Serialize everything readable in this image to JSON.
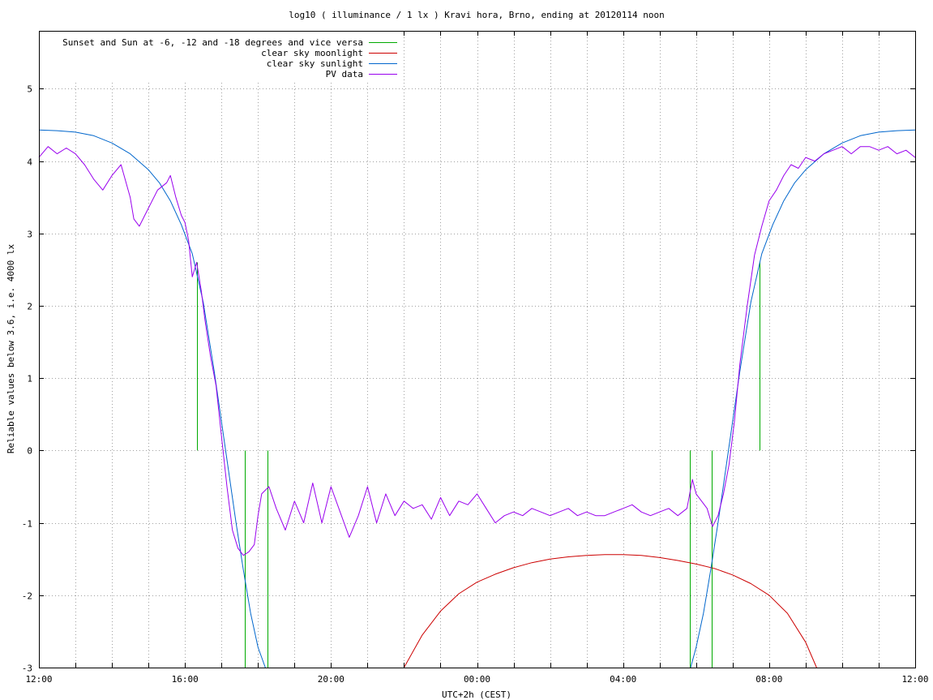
{
  "chart_data": {
    "type": "line",
    "title": "log10 ( illuminance / 1 lx ) Kravi hora, Brno, ending at 20120114 noon",
    "xlabel": "UTC+2h (CEST)",
    "ylabel": "Reliable values below 3.6, i.e. 4000 lx",
    "x_unit": "hours",
    "xlim": [
      0,
      24
    ],
    "ylim": [
      -3,
      5.8
    ],
    "x_tick_labels": [
      {
        "x": 0,
        "label": "12:00"
      },
      {
        "x": 4,
        "label": "16:00"
      },
      {
        "x": 8,
        "label": "20:00"
      },
      {
        "x": 12,
        "label": "00:00"
      },
      {
        "x": 16,
        "label": "04:00"
      },
      {
        "x": 20,
        "label": "08:00"
      },
      {
        "x": 24,
        "label": "12:00"
      }
    ],
    "x_minor_ticks": [
      1,
      2,
      3,
      5,
      6,
      7,
      9,
      10,
      11,
      13,
      14,
      15,
      17,
      18,
      19,
      21,
      22,
      23
    ],
    "y_ticks": [
      -3,
      -2,
      -1,
      0,
      1,
      2,
      3,
      4,
      5
    ],
    "grid": true,
    "legend_position": "top-left",
    "series": [
      {
        "name": "Sunset and Sun at -6, -12 and -18 degrees and vice versa",
        "color": "#00aa00",
        "style": "impulses",
        "impulses": [
          {
            "x": 4.32,
            "y": 2.6
          },
          {
            "x": 5.0,
            "y": 0.0
          },
          {
            "x": 5.63,
            "y": -3.0
          },
          {
            "x": 6.25,
            "y": -3.0
          },
          {
            "x": 17.82,
            "y": -3.0
          },
          {
            "x": 18.43,
            "y": -3.0
          },
          {
            "x": 19.05,
            "y": 0.0
          },
          {
            "x": 19.73,
            "y": 2.6
          }
        ]
      },
      {
        "name": "clear sky moonlight",
        "color": "#cc0000",
        "style": "line",
        "x": [
          10.0,
          10.5,
          11.0,
          11.5,
          12.0,
          12.5,
          13.0,
          13.5,
          14.0,
          14.5,
          15.0,
          15.5,
          16.0,
          16.5,
          17.0,
          17.5,
          18.0,
          18.5,
          19.0,
          19.5,
          20.0,
          20.5,
          21.0,
          21.3
        ],
        "values": [
          -3.0,
          -2.55,
          -2.22,
          -1.98,
          -1.82,
          -1.71,
          -1.62,
          -1.55,
          -1.5,
          -1.47,
          -1.45,
          -1.44,
          -1.44,
          -1.45,
          -1.48,
          -1.52,
          -1.57,
          -1.63,
          -1.72,
          -1.84,
          -2.0,
          -2.25,
          -2.65,
          -3.0
        ]
      },
      {
        "name": "clear sky sunlight",
        "color": "#0066cc",
        "style": "line",
        "x": [
          0.0,
          0.5,
          1.0,
          1.5,
          2.0,
          2.5,
          3.0,
          3.3,
          3.6,
          3.9,
          4.2,
          4.5,
          4.8,
          5.0,
          5.2,
          5.4,
          5.6,
          5.8,
          6.0,
          6.2,
          17.85,
          18.0,
          18.2,
          18.4,
          18.6,
          18.8,
          19.0,
          19.2,
          19.5,
          19.8,
          20.1,
          20.4,
          20.7,
          21.0,
          21.5,
          22.0,
          22.5,
          23.0,
          23.5,
          24.0
        ],
        "values": [
          4.43,
          4.42,
          4.4,
          4.35,
          4.25,
          4.1,
          3.88,
          3.7,
          3.45,
          3.12,
          2.72,
          2.05,
          1.1,
          0.4,
          -0.3,
          -1.0,
          -1.65,
          -2.25,
          -2.72,
          -3.0,
          -3.0,
          -2.72,
          -2.25,
          -1.65,
          -1.0,
          -0.3,
          0.4,
          1.1,
          2.05,
          2.72,
          3.12,
          3.45,
          3.7,
          3.88,
          4.1,
          4.25,
          4.35,
          4.4,
          4.42,
          4.43
        ]
      },
      {
        "name": "PV data",
        "color": "#9900ee",
        "style": "line",
        "x": [
          0.0,
          0.25,
          0.5,
          0.75,
          1.0,
          1.25,
          1.5,
          1.75,
          2.0,
          2.25,
          2.5,
          2.6,
          2.75,
          3.0,
          3.25,
          3.5,
          3.6,
          3.75,
          3.9,
          4.0,
          4.1,
          4.2,
          4.32,
          4.45,
          4.55,
          4.7,
          4.85,
          5.0,
          5.15,
          5.3,
          5.45,
          5.6,
          5.75,
          5.9,
          6.0,
          6.1,
          6.2,
          6.3,
          6.5,
          6.75,
          7.0,
          7.25,
          7.5,
          7.75,
          8.0,
          8.25,
          8.5,
          8.75,
          9.0,
          9.25,
          9.5,
          9.75,
          10.0,
          10.25,
          10.5,
          10.75,
          11.0,
          11.25,
          11.5,
          11.75,
          12.0,
          12.25,
          12.5,
          12.75,
          13.0,
          13.25,
          13.5,
          13.75,
          14.0,
          14.25,
          14.5,
          14.75,
          15.0,
          15.25,
          15.5,
          15.75,
          16.0,
          16.25,
          16.5,
          16.75,
          17.0,
          17.25,
          17.5,
          17.75,
          17.9,
          18.0,
          18.15,
          18.3,
          18.45,
          18.6,
          18.75,
          18.9,
          19.05,
          19.2,
          19.4,
          19.6,
          19.8,
          20.0,
          20.2,
          20.4,
          20.6,
          20.8,
          21.0,
          21.25,
          21.5,
          21.75,
          22.0,
          22.25,
          22.5,
          22.75,
          23.0,
          23.25,
          23.5,
          23.75,
          24.0
        ],
        "values": [
          4.05,
          4.2,
          4.1,
          4.18,
          4.1,
          3.95,
          3.75,
          3.6,
          3.8,
          3.95,
          3.5,
          3.2,
          3.1,
          3.35,
          3.6,
          3.7,
          3.8,
          3.5,
          3.25,
          3.15,
          2.9,
          2.4,
          2.6,
          2.2,
          1.8,
          1.3,
          0.9,
          0.2,
          -0.5,
          -1.1,
          -1.35,
          -1.45,
          -1.4,
          -1.3,
          -0.9,
          -0.6,
          -0.55,
          -0.5,
          -0.8,
          -1.1,
          -0.7,
          -1.0,
          -0.45,
          -1.0,
          -0.5,
          -0.85,
          -1.2,
          -0.9,
          -0.5,
          -1.0,
          -0.6,
          -0.9,
          -0.7,
          -0.8,
          -0.75,
          -0.95,
          -0.65,
          -0.9,
          -0.7,
          -0.75,
          -0.6,
          -0.8,
          -1.0,
          -0.9,
          -0.85,
          -0.9,
          -0.8,
          -0.85,
          -0.9,
          -0.85,
          -0.8,
          -0.9,
          -0.85,
          -0.9,
          -0.9,
          -0.85,
          -0.8,
          -0.75,
          -0.85,
          -0.9,
          -0.85,
          -0.8,
          -0.9,
          -0.8,
          -0.4,
          -0.6,
          -0.7,
          -0.8,
          -1.05,
          -0.9,
          -0.6,
          -0.2,
          0.4,
          1.2,
          2.0,
          2.7,
          3.1,
          3.45,
          3.6,
          3.8,
          3.95,
          3.9,
          4.05,
          4.0,
          4.1,
          4.15,
          4.2,
          4.1,
          4.2,
          4.2,
          4.15,
          4.2,
          4.1,
          4.15,
          4.05
        ]
      }
    ]
  }
}
